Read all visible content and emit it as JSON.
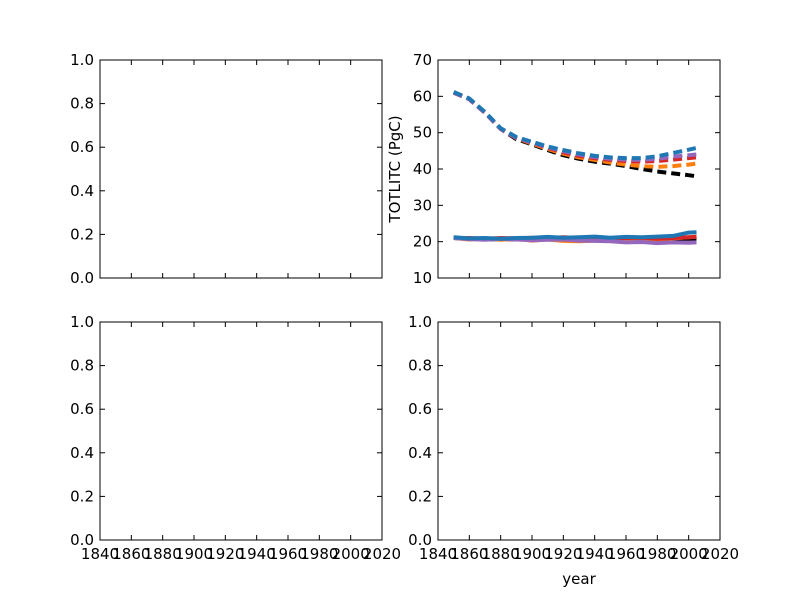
{
  "chart_data": [
    {
      "panel": "top-left",
      "type": "line",
      "xlim": [
        1840,
        2020
      ],
      "ylim": [
        0,
        1
      ],
      "y_ticks": [
        "0.0",
        "0.2",
        "0.4",
        "0.6",
        "0.8",
        "1.0"
      ],
      "x_ticks": [],
      "xlabel": "",
      "ylabel": "",
      "series": []
    },
    {
      "panel": "top-right",
      "type": "line",
      "xlim": [
        1840,
        2020
      ],
      "ylim": [
        10,
        70
      ],
      "y_ticks": [
        "10",
        "20",
        "30",
        "40",
        "50",
        "60",
        "70"
      ],
      "x_ticks": [],
      "xlabel": "",
      "ylabel": "TOTLITC (PgC)",
      "series": [
        {
          "color": "#000000",
          "style": "dashed",
          "x": [
            1850,
            1860,
            1870,
            1880,
            1890,
            1900,
            1910,
            1920,
            1930,
            1940,
            1950,
            1960,
            1970,
            1980,
            1990,
            2000,
            2005
          ],
          "y": [
            61,
            59.2,
            55.5,
            51,
            48.2,
            46.8,
            45.2,
            43.8,
            42.8,
            42,
            41.5,
            40.8,
            40,
            39.3,
            38.8,
            38.3,
            38
          ]
        },
        {
          "color": "#ff7f0e",
          "style": "dashed",
          "x": [
            1850,
            1860,
            1870,
            1880,
            1890,
            1900,
            1910,
            1920,
            1930,
            1940,
            1950,
            1960,
            1970,
            1980,
            1990,
            2000,
            2005
          ],
          "y": [
            61,
            59.2,
            55.5,
            51,
            48.5,
            47,
            45.5,
            44.2,
            43.2,
            42.5,
            41.8,
            41.2,
            40.8,
            40.6,
            40.8,
            41.2,
            41.5
          ]
        },
        {
          "color": "#d62728",
          "style": "dashed",
          "x": [
            1850,
            1860,
            1870,
            1880,
            1890,
            1900,
            1910,
            1920,
            1930,
            1940,
            1950,
            1960,
            1970,
            1980,
            1990,
            2000,
            2005
          ],
          "y": [
            61,
            59.2,
            55.5,
            51,
            48.5,
            47.2,
            45.8,
            44.6,
            43.6,
            43,
            42.5,
            42.2,
            42,
            42.2,
            42.6,
            43,
            43.2
          ]
        },
        {
          "color": "#9467bd",
          "style": "dashed",
          "x": [
            1850,
            1860,
            1870,
            1880,
            1890,
            1900,
            1910,
            1920,
            1930,
            1940,
            1950,
            1960,
            1970,
            1980,
            1990,
            2000,
            2005
          ],
          "y": [
            61,
            59.2,
            55.5,
            51,
            48.6,
            47.3,
            46,
            44.9,
            44,
            43.3,
            42.8,
            42.6,
            42.5,
            42.8,
            43.4,
            43.8,
            44
          ]
        },
        {
          "color": "#1f77b4",
          "style": "dashed",
          "x": [
            1850,
            1860,
            1870,
            1880,
            1890,
            1900,
            1910,
            1920,
            1930,
            1940,
            1950,
            1960,
            1970,
            1980,
            1990,
            2000,
            2005
          ],
          "y": [
            61.2,
            59.4,
            55.7,
            51.2,
            48.8,
            47.5,
            46.2,
            45.2,
            44.3,
            43.6,
            43.2,
            43,
            43,
            43.5,
            44.4,
            45.3,
            45.8
          ]
        },
        {
          "color": "#000000",
          "style": "solid",
          "x": [
            1850,
            1860,
            1870,
            1880,
            1890,
            1900,
            1910,
            1920,
            1930,
            1940,
            1950,
            1960,
            1970,
            1980,
            1990,
            2000,
            2005
          ],
          "y": [
            21,
            20.8,
            20.6,
            20.7,
            20.6,
            20.8,
            20.7,
            20.8,
            20.8,
            20.7,
            20.8,
            20.6,
            20.7,
            20.6,
            20.7,
            20.8,
            20.7
          ]
        },
        {
          "color": "#ff7f0e",
          "style": "solid",
          "x": [
            1850,
            1860,
            1870,
            1880,
            1890,
            1900,
            1910,
            1920,
            1930,
            1940,
            1950,
            1960,
            1970,
            1980,
            1990,
            2000,
            2005
          ],
          "y": [
            21,
            20.6,
            20.9,
            20.5,
            20.8,
            20.3,
            20.6,
            20.2,
            20.1,
            20.3,
            20.4,
            20.2,
            20.5,
            20.6,
            20.9,
            21.2,
            21.4
          ]
        },
        {
          "color": "#d62728",
          "style": "solid",
          "x": [
            1850,
            1860,
            1870,
            1880,
            1890,
            1900,
            1910,
            1920,
            1930,
            1940,
            1950,
            1960,
            1970,
            1980,
            1990,
            2000,
            2005
          ],
          "y": [
            21,
            21,
            20.8,
            21,
            20.9,
            21.1,
            21,
            21.2,
            21,
            21.1,
            20.9,
            21,
            21.1,
            20.8,
            21,
            21.2,
            21.3
          ]
        },
        {
          "color": "#9467bd",
          "style": "solid",
          "x": [
            1850,
            1860,
            1870,
            1880,
            1890,
            1900,
            1910,
            1920,
            1930,
            1940,
            1950,
            1960,
            1970,
            1980,
            1990,
            2000,
            2005
          ],
          "y": [
            21,
            20.7,
            20.5,
            20.8,
            20.6,
            20.4,
            20.5,
            20.6,
            20.3,
            20.2,
            20.1,
            19.8,
            19.9,
            19.6,
            19.8,
            19.7,
            19.8
          ]
        },
        {
          "color": "#1f77b4",
          "style": "solid",
          "x": [
            1850,
            1860,
            1870,
            1880,
            1890,
            1900,
            1910,
            1920,
            1930,
            1940,
            1950,
            1960,
            1970,
            1980,
            1990,
            2000,
            2005
          ],
          "y": [
            21.2,
            20.9,
            21,
            20.8,
            21,
            21.1,
            21.3,
            21.1,
            21.2,
            21.4,
            21.1,
            21.3,
            21.2,
            21.4,
            21.6,
            22.5,
            22.6
          ]
        }
      ]
    },
    {
      "panel": "bottom-left",
      "type": "line",
      "xlim": [
        1840,
        2020
      ],
      "ylim": [
        0,
        1
      ],
      "y_ticks": [
        "0.0",
        "0.2",
        "0.4",
        "0.6",
        "0.8",
        "1.0"
      ],
      "x_ticks": [
        "1840",
        "1860",
        "1880",
        "1900",
        "1920",
        "1940",
        "1960",
        "1980",
        "2000",
        "2020"
      ],
      "xlabel": "",
      "ylabel": "",
      "series": []
    },
    {
      "panel": "bottom-right",
      "type": "line",
      "xlim": [
        1840,
        2020
      ],
      "ylim": [
        0,
        1
      ],
      "y_ticks": [
        "0.0",
        "0.2",
        "0.4",
        "0.6",
        "0.8",
        "1.0"
      ],
      "x_ticks": [
        "1840",
        "1860",
        "1880",
        "1900",
        "1920",
        "1940",
        "1960",
        "1980",
        "2000",
        "2020"
      ],
      "xlabel": "year",
      "ylabel": "",
      "series": []
    }
  ]
}
